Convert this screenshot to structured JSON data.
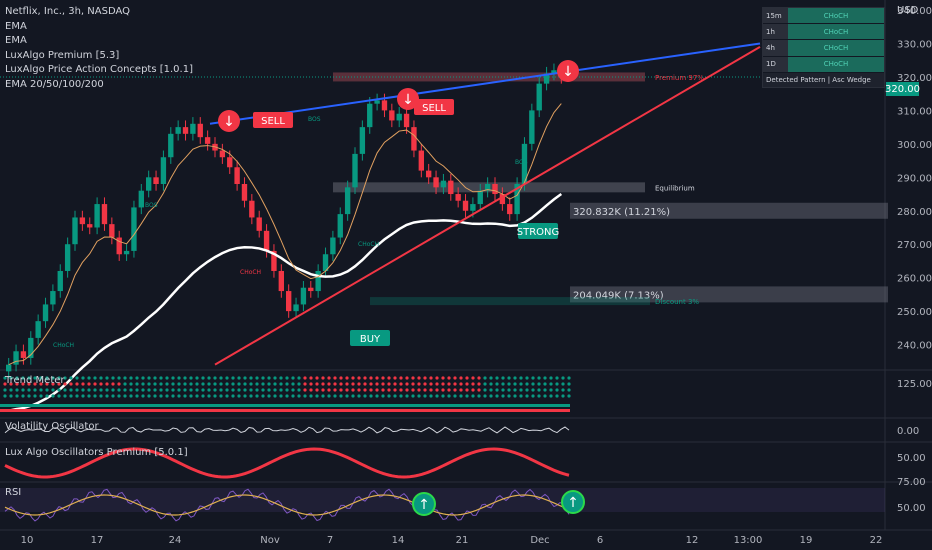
{
  "legend": {
    "title": "Netflix, Inc., 3h, NASDAQ",
    "lines": [
      "EMA",
      "EMA",
      "LuxAlgo Premium [5.3]",
      "LuxAlgo Price Action Concepts [1.0.1]",
      "EMA 20/50/100/200"
    ]
  },
  "currency": "USD",
  "last_price": "320.00",
  "timeframe_table": {
    "rows": [
      {
        "tf": "15m",
        "status": "CHoCH"
      },
      {
        "tf": "1h",
        "status": "CHoCH"
      },
      {
        "tf": "4h",
        "status": "CHoCH"
      },
      {
        "tf": "1D",
        "status": "CHoCH"
      }
    ],
    "footer": "Detected Pattern | Asc Wedge"
  },
  "panes": {
    "trend_meter": "Trend Meter",
    "volatility": "Volatility Oscillator",
    "oscillators": "Lux Algo Oscillators Premium [5.0.1]",
    "rsi": "RSI"
  },
  "chart_data": {
    "type": "candlestick",
    "title": "Netflix, Inc., 3h, NASDAQ",
    "ylim": [
      233,
      343
    ],
    "y_ticks": [
      "340.00",
      "330.00",
      "320.00",
      "310.00",
      "300.00",
      "290.00",
      "280.00",
      "270.00",
      "260.00",
      "250.00",
      "240.00"
    ],
    "x_ticks": [
      "10",
      "17",
      "24",
      "Nov",
      "7",
      "14",
      "21",
      "Dec",
      "6",
      "12",
      "13:00",
      "19",
      "22"
    ],
    "close_series": [
      234,
      238,
      236,
      242,
      247,
      252,
      256,
      262,
      270,
      278,
      276,
      275,
      282,
      276,
      272,
      267,
      268,
      281,
      286,
      290,
      288,
      296,
      303,
      305,
      303,
      306,
      302,
      300,
      298,
      296,
      293,
      288,
      283,
      278,
      274,
      268,
      262,
      256,
      250,
      252,
      257,
      256,
      262,
      267,
      272,
      279,
      287,
      297,
      305,
      312,
      313,
      310,
      307,
      309,
      305,
      298,
      292,
      290,
      287,
      289,
      285,
      283,
      280,
      282,
      286,
      288,
      285,
      282,
      279,
      288,
      300,
      310,
      318,
      321,
      322,
      320
    ],
    "zones": [
      {
        "label": "Premium 97%",
        "level": 320
      },
      {
        "label": "Equilibrium",
        "level": 287
      },
      {
        "label": "320.832K (11.21%)",
        "level": 280
      },
      {
        "label": "204.049K (7.13%)",
        "level": 255
      },
      {
        "label": "Discount 3%",
        "level": 253
      }
    ],
    "signals": [
      "SELL",
      "SELL",
      "BUY",
      "STRONG"
    ],
    "structure_labels": [
      "BOS",
      "BOS",
      "BOS",
      "CHoCH",
      "CHoCH",
      "CHoCH"
    ],
    "sub_ticks": {
      "trend_meter": [
        "125.00"
      ],
      "volatility": [
        "0.00"
      ],
      "oscillators": [
        "50.00"
      ],
      "rsi": [
        "75.00",
        "50.00"
      ]
    }
  }
}
